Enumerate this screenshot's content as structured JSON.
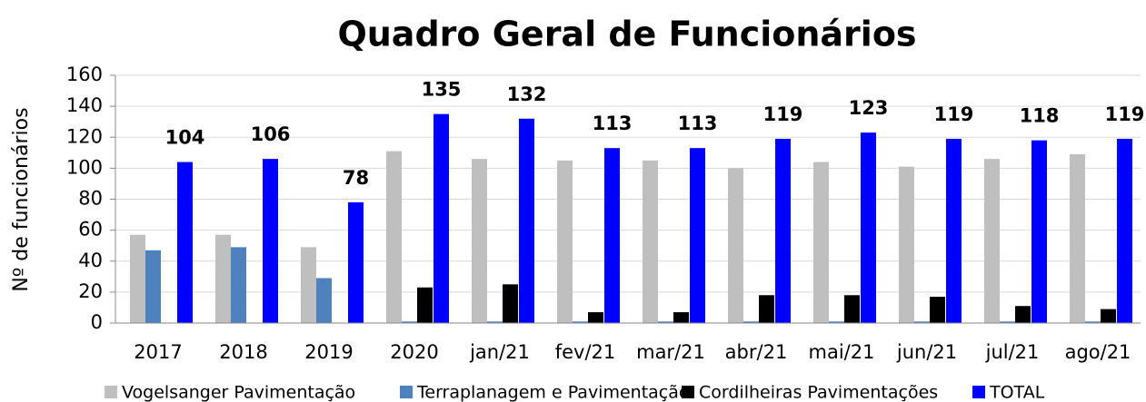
{
  "chart_data": {
    "type": "bar",
    "title": "Quadro Geral de Funcionários",
    "y_label": "Nº de funcionários",
    "categories": [
      "2017",
      "2018",
      "2019",
      "2020",
      "jan/21",
      "fev/21",
      "mar/21",
      "abr/21",
      "mai/21",
      "jun/21",
      "jul/21",
      "ago/21"
    ],
    "series": [
      {
        "name": "Vogelsanger Pavimentação",
        "color": "#bfbfbf",
        "values": [
          57,
          57,
          49,
          111,
          106,
          105,
          105,
          100,
          104,
          101,
          106,
          109
        ]
      },
      {
        "name": "Terraplanagem e Pavimentação",
        "color": "#4f81bd",
        "values": [
          47,
          49,
          29,
          1,
          1,
          1,
          1,
          1,
          1,
          1,
          1,
          1
        ]
      },
      {
        "name": "Cordilheiras Pavimentações",
        "color": "#000000",
        "values": [
          0,
          0,
          0,
          23,
          25,
          7,
          7,
          18,
          18,
          17,
          11,
          9
        ]
      },
      {
        "name": "TOTAL",
        "color": "#0000ff",
        "values": [
          104,
          106,
          78,
          135,
          132,
          113,
          113,
          119,
          123,
          119,
          118,
          119
        ],
        "data_labels": true
      }
    ],
    "ylim": [
      0,
      160
    ],
    "yticks": [
      0,
      20,
      40,
      60,
      80,
      100,
      120,
      140,
      160
    ],
    "grid": true,
    "legend": "bottom"
  }
}
